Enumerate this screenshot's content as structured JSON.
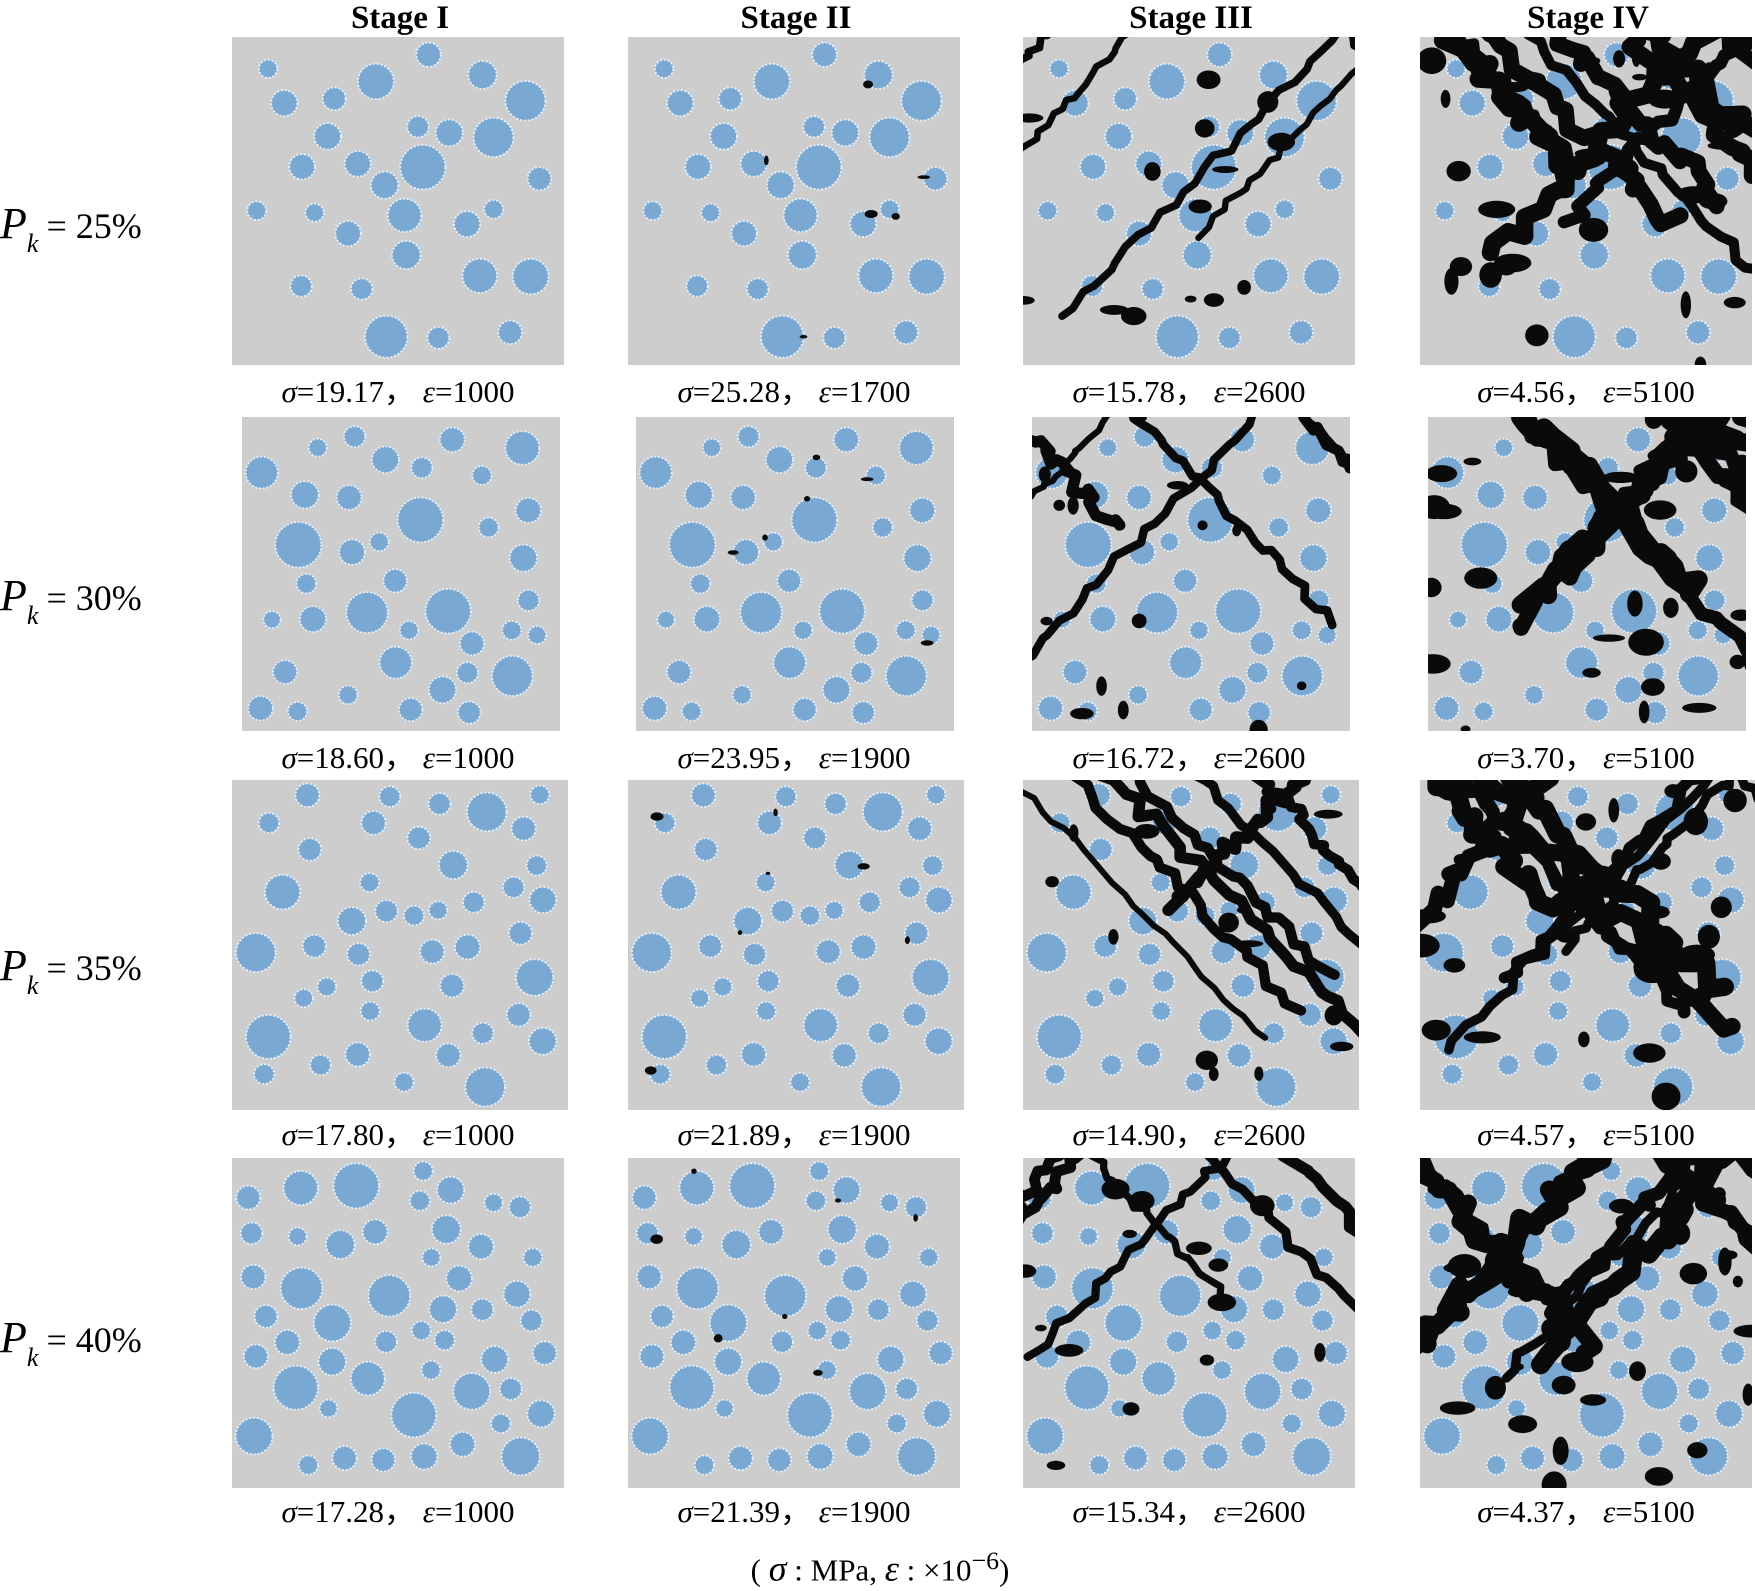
{
  "columns": [
    {
      "stage": "Stage I"
    },
    {
      "stage": "Stage II"
    },
    {
      "stage": "Stage III"
    },
    {
      "stage": "Stage IV"
    }
  ],
  "rows": [
    {
      "symbol": "P",
      "subscript": "k",
      "relation": "=",
      "value": "25%",
      "cells": [
        {
          "sigma_label": "σ",
          "sigma": "19.17",
          "sep": "，",
          "eps_label": "ε",
          "eps": "1000",
          "damage": 0
        },
        {
          "sigma_label": "σ",
          "sigma": "25.28",
          "sep": "，",
          "eps_label": "ε",
          "eps": "1700",
          "damage": 1
        },
        {
          "sigma_label": "σ",
          "sigma": "15.78",
          "sep": "，",
          "eps_label": "ε",
          "eps": "2600",
          "damage": 2
        },
        {
          "sigma_label": "σ",
          "sigma": "4.56",
          "sep": "，",
          "eps_label": "ε",
          "eps": "5100",
          "damage": 3
        }
      ]
    },
    {
      "symbol": "P",
      "subscript": "k",
      "relation": "=",
      "value": "30%",
      "cells": [
        {
          "sigma_label": "σ",
          "sigma": "18.60",
          "sep": "，",
          "eps_label": "ε",
          "eps": "1000",
          "damage": 0
        },
        {
          "sigma_label": "σ",
          "sigma": "23.95",
          "sep": "，",
          "eps_label": "ε",
          "eps": "1900",
          "damage": 1
        },
        {
          "sigma_label": "σ",
          "sigma": "16.72",
          "sep": "，",
          "eps_label": "ε",
          "eps": "2600",
          "damage": 2
        },
        {
          "sigma_label": "σ",
          "sigma": "3.70",
          "sep": "，",
          "eps_label": "ε",
          "eps": "5100",
          "damage": 3
        }
      ]
    },
    {
      "symbol": "P",
      "subscript": "k",
      "relation": "=",
      "value": "35%",
      "cells": [
        {
          "sigma_label": "σ",
          "sigma": "17.80",
          "sep": "，",
          "eps_label": "ε",
          "eps": "1000",
          "damage": 0
        },
        {
          "sigma_label": "σ",
          "sigma": "21.89",
          "sep": "，",
          "eps_label": "ε",
          "eps": "1900",
          "damage": 1
        },
        {
          "sigma_label": "σ",
          "sigma": "14.90",
          "sep": "，",
          "eps_label": "ε",
          "eps": "2600",
          "damage": 2
        },
        {
          "sigma_label": "σ",
          "sigma": "4.57",
          "sep": "，",
          "eps_label": "ε",
          "eps": "5100",
          "damage": 3
        }
      ]
    },
    {
      "symbol": "P",
      "subscript": "k",
      "relation": "=",
      "value": "40%",
      "cells": [
        {
          "sigma_label": "σ",
          "sigma": "17.28",
          "sep": "，",
          "eps_label": "ε",
          "eps": "1000",
          "damage": 0
        },
        {
          "sigma_label": "σ",
          "sigma": "21.39",
          "sep": "，",
          "eps_label": "ε",
          "eps": "1900",
          "damage": 1
        },
        {
          "sigma_label": "σ",
          "sigma": "15.34",
          "sep": "，",
          "eps_label": "ε",
          "eps": "2600",
          "damage": 2
        },
        {
          "sigma_label": "σ",
          "sigma": "4.37",
          "sep": "，",
          "eps_label": "ε",
          "eps": "5100",
          "damage": 3
        }
      ]
    }
  ],
  "footnote": {
    "open": "(",
    "sigma_symbol": "σ",
    "sigma_unit": " : MPa,  ",
    "eps_symbol": "ε",
    "eps_unit": " : ×10",
    "exponent": "−6",
    "close": ")"
  },
  "colors": {
    "matrix": "#cdcdcd",
    "aggregate": "#79a8d3",
    "interface": "#e6f2fb",
    "crack": "#0a0a0a"
  }
}
